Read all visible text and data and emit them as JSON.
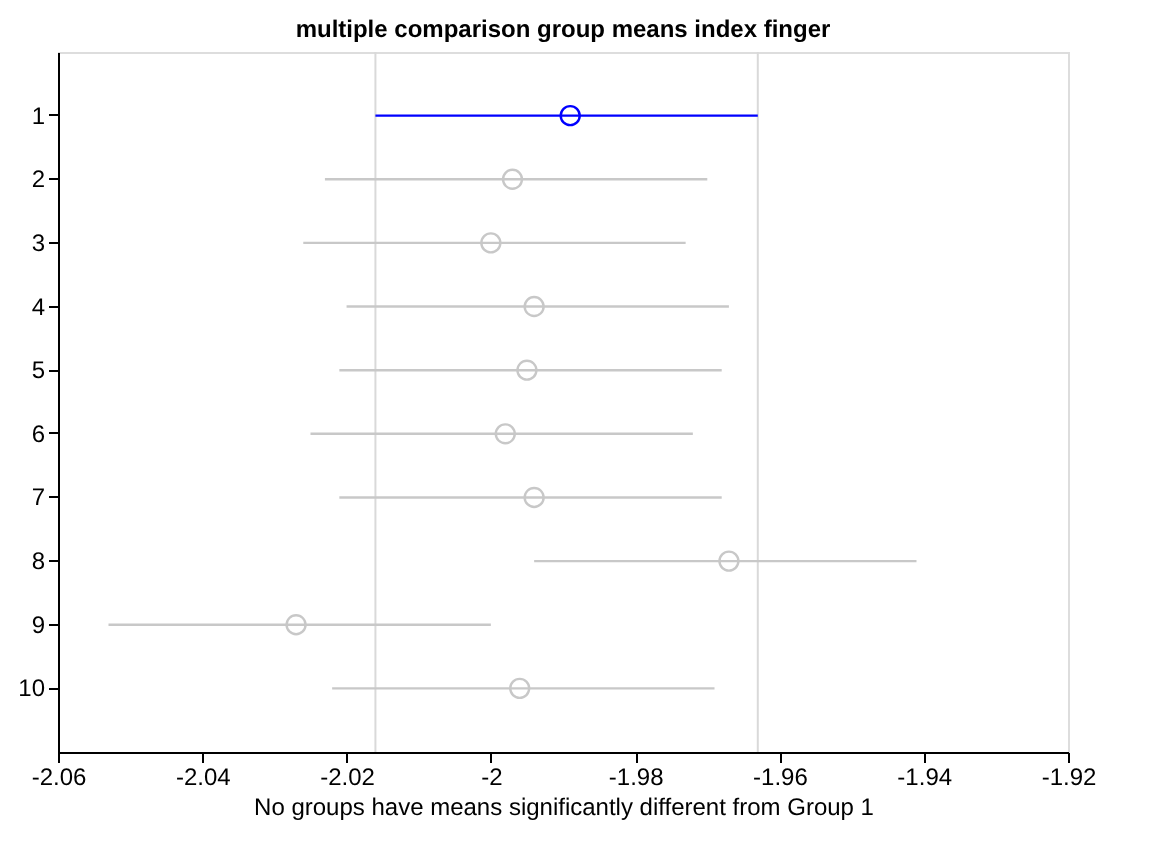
{
  "chart_data": {
    "type": "scatter",
    "orientation": "horizontal",
    "title": "multiple comparison group means index finger",
    "xlabel": "No groups have means significantly different from Group 1",
    "categories": [
      "1",
      "2",
      "3",
      "4",
      "5",
      "6",
      "7",
      "8",
      "9",
      "10"
    ],
    "values": [
      -1.989,
      -1.997,
      -2.0,
      -1.994,
      -1.995,
      -1.998,
      -1.994,
      -1.967,
      -2.027,
      -1.996
    ],
    "errors": [
      [
        -2.016,
        -1.963
      ],
      [
        -2.023,
        -1.97
      ],
      [
        -2.026,
        -1.973
      ],
      [
        -2.02,
        -1.967
      ],
      [
        -2.021,
        -1.968
      ],
      [
        -2.025,
        -1.972
      ],
      [
        -2.021,
        -1.968
      ],
      [
        -1.994,
        -1.941
      ],
      [
        -2.053,
        -2.0
      ],
      [
        -2.022,
        -1.969
      ]
    ],
    "colors": [
      "#0000ff",
      "#c8c8c8",
      "#c8c8c8",
      "#c8c8c8",
      "#c8c8c8",
      "#c8c8c8",
      "#c8c8c8",
      "#c8c8c8",
      "#c8c8c8",
      "#c8c8c8"
    ],
    "xlim": [
      -2.06,
      -1.92
    ],
    "xticks": [
      -2.06,
      -2.04,
      -2.02,
      -2,
      -1.98,
      -1.96,
      -1.94,
      -1.92
    ],
    "marker": "circle",
    "grid": false,
    "ref_lines": [
      {
        "axis": "x",
        "value": -2.016,
        "color": "#d9d9d9"
      },
      {
        "axis": "x",
        "value": -1.963,
        "color": "#d9d9d9"
      }
    ]
  }
}
